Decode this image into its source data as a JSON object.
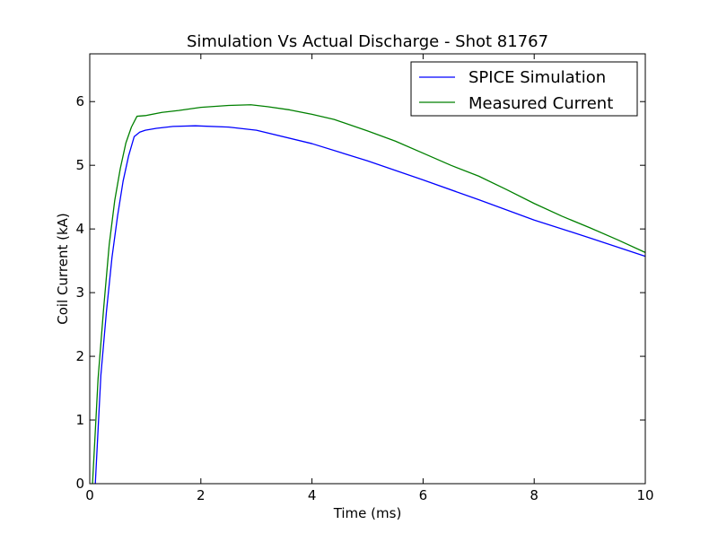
{
  "chart_data": {
    "type": "line",
    "title": "Simulation Vs Actual Discharge - Shot 81767",
    "xlabel": "Time (ms)",
    "ylabel": "Coil Current (kA)",
    "xlim": [
      0,
      10
    ],
    "ylim": [
      0,
      6.75
    ],
    "x_ticks": [
      "0",
      "2",
      "4",
      "6",
      "8",
      "10"
    ],
    "y_ticks": [
      "0",
      "1",
      "2",
      "3",
      "4",
      "5",
      "6"
    ],
    "grid": false,
    "legend_position": "upper-right",
    "series": [
      {
        "name": "SPICE Simulation",
        "color": "#0000ff",
        "x": [
          0.1,
          0.2,
          0.3,
          0.4,
          0.5,
          0.6,
          0.7,
          0.8,
          0.9,
          1.0,
          1.2,
          1.5,
          1.9,
          2.5,
          3.0,
          4.0,
          5.0,
          6.0,
          7.0,
          8.0,
          9.0,
          10.0
        ],
        "y": [
          0.0,
          1.7,
          2.7,
          3.55,
          4.2,
          4.75,
          5.15,
          5.45,
          5.52,
          5.55,
          5.58,
          5.61,
          5.62,
          5.6,
          5.55,
          5.34,
          5.07,
          4.77,
          4.46,
          4.14,
          3.86,
          3.57
        ]
      },
      {
        "name": "Measured Current",
        "color": "#008000",
        "x": [
          0.05,
          0.15,
          0.25,
          0.35,
          0.45,
          0.55,
          0.65,
          0.75,
          0.85,
          1.0,
          1.3,
          1.6,
          2.0,
          2.5,
          2.9,
          3.2,
          3.6,
          4.0,
          4.4,
          5.0,
          5.5,
          6.0,
          6.5,
          7.0,
          7.5,
          8.0,
          8.5,
          9.0,
          9.5,
          10.0
        ],
        "y": [
          0.0,
          1.65,
          2.75,
          3.75,
          4.45,
          4.95,
          5.35,
          5.6,
          5.77,
          5.78,
          5.83,
          5.86,
          5.91,
          5.94,
          5.95,
          5.92,
          5.87,
          5.8,
          5.72,
          5.54,
          5.38,
          5.19,
          5.0,
          4.83,
          4.62,
          4.4,
          4.2,
          4.02,
          3.83,
          3.63
        ]
      }
    ]
  }
}
